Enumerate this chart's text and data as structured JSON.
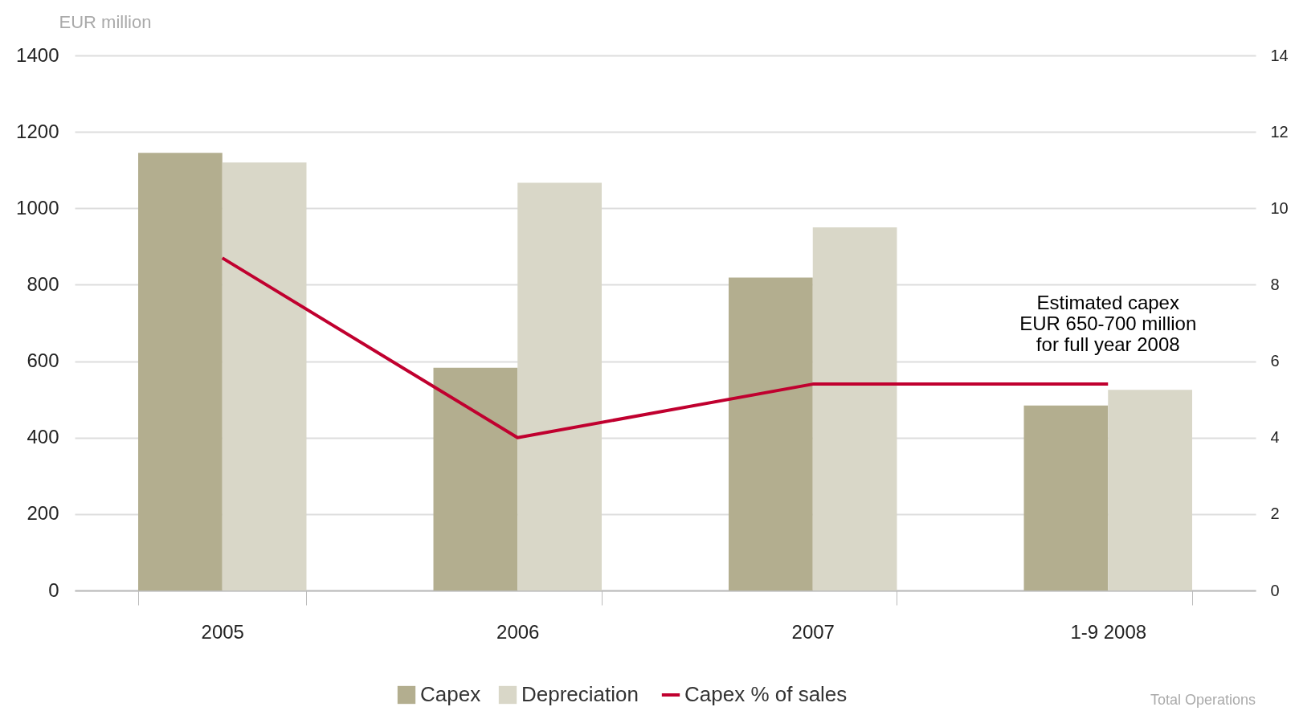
{
  "chart_data": {
    "type": "bar",
    "ylabel": "EUR million",
    "categories": [
      "2005",
      "2006",
      "2007",
      "1-9 2008"
    ],
    "series": [
      {
        "name": "Capex",
        "color": "#b3ae8f",
        "values": [
          1145,
          583,
          819,
          484
        ]
      },
      {
        "name": "Depreciation",
        "color": "#d9d7c8",
        "values": [
          1120,
          1067,
          950,
          525
        ]
      },
      {
        "name": "Capex % of sales",
        "type": "line",
        "axis": "y2",
        "color": "#c0002f",
        "values": [
          8.7,
          4.0,
          5.4,
          5.4
        ]
      }
    ],
    "ylim": [
      0,
      1400
    ],
    "yticks": [
      0,
      200,
      400,
      600,
      800,
      1000,
      1200,
      1400
    ],
    "y2lim": [
      0,
      14
    ],
    "y2ticks": [
      0,
      2,
      4,
      6,
      8,
      10,
      12,
      14
    ],
    "grid": "y",
    "legend": "bottom",
    "marker": "none",
    "annotations": [
      "Estimated capex\nEUR 650-700 million\nfor full year 2008",
      "Total Operations"
    ]
  }
}
